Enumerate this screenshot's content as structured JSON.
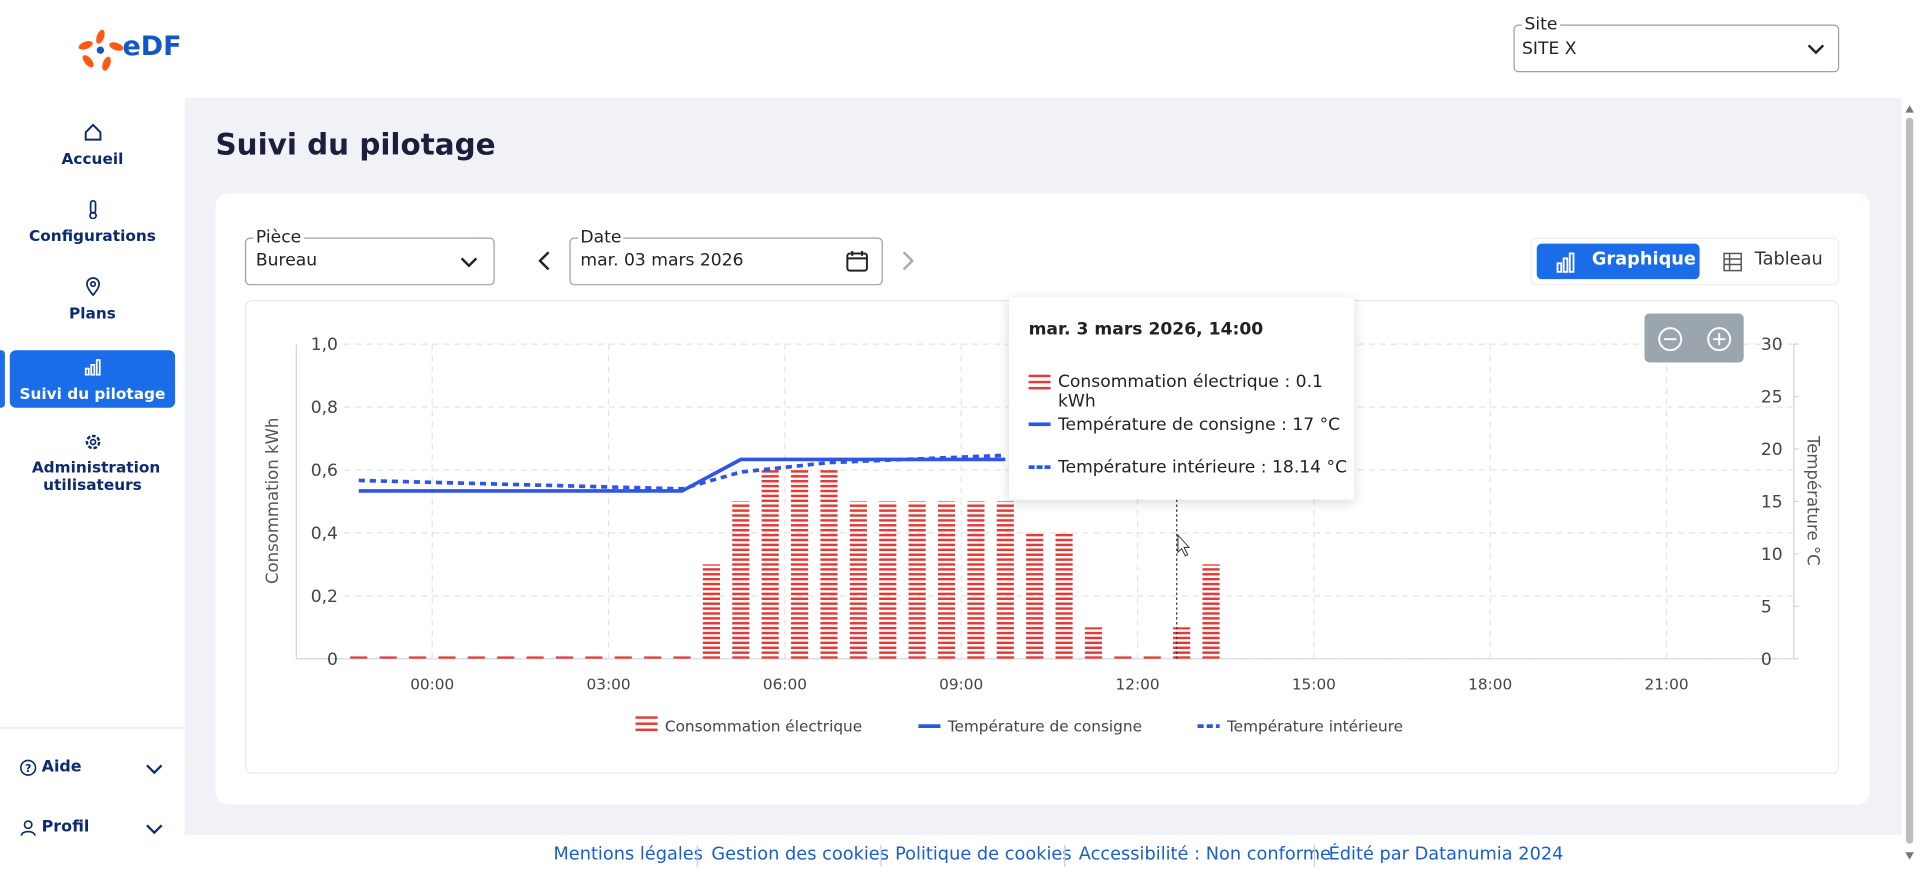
{
  "header": {
    "logo": "eDF",
    "site_label": "Site",
    "site_value": "SITE X"
  },
  "nav": {
    "items": [
      "Accueil",
      "Configurations",
      "Plans",
      "Suivi du pilotage",
      "Administration utilisateurs"
    ],
    "bottom": [
      "Aide",
      "Profil"
    ]
  },
  "page": {
    "title": "Suivi du pilotage",
    "room_label": "Pièce",
    "room_value": "Bureau",
    "date_label": "Date",
    "date_value": "mar. 03 mars 2026",
    "views": [
      "Graphique",
      "Tableau"
    ]
  },
  "tooltip": {
    "title": "mar. 3 mars 2026, 14:00",
    "lines": [
      "Consommation électrique : 0.1 kWh",
      "Température de consigne : 17 °C",
      "Température intérieure : 18.14 °C"
    ]
  },
  "chart_data": {
    "type": "bar",
    "ylabel": "Consommation kWh",
    "y2label": "Température °C",
    "xlim": [
      -1.5,
      23.17
    ],
    "xticks": [
      {
        "value": 0,
        "label": "00:00"
      },
      {
        "value": 3,
        "label": "03:00"
      },
      {
        "value": 6,
        "label": "06:00"
      },
      {
        "value": 9,
        "label": "09:00"
      },
      {
        "value": 12,
        "label": "12:00"
      },
      {
        "value": 15,
        "label": "15:00"
      },
      {
        "value": 18,
        "label": "18:00"
      },
      {
        "value": 21,
        "label": "21:00"
      }
    ],
    "ylim": [
      0,
      1
    ],
    "yticks": [
      0,
      {
        "value": 0.2,
        "label": "0,2"
      },
      {
        "value": 0.4,
        "label": "0,4"
      },
      {
        "value": 0.6,
        "label": "0,6"
      },
      {
        "value": 0.8,
        "label": "0,8"
      },
      {
        "value": 1,
        "label": "1,0"
      }
    ],
    "y2lim": [
      0,
      30
    ],
    "y2ticks": [
      0,
      5,
      10,
      15,
      20,
      25,
      30
    ],
    "grid": true,
    "series": [
      {
        "name": "Consommation électrique",
        "type": "bar",
        "color": "#e53935",
        "x": [
          -1.25,
          -0.75,
          -0.25,
          0.25,
          0.75,
          1.25,
          1.75,
          2.25,
          2.75,
          3.25,
          3.75,
          4.25,
          4.75,
          5.25,
          5.75,
          6.25,
          6.75,
          7.25,
          7.75,
          8.25,
          8.75,
          9.25,
          9.75,
          10.25,
          10.75,
          11.25,
          11.75,
          12.25,
          12.75,
          13.25
        ],
        "values": [
          0,
          0,
          0,
          0,
          0,
          0,
          0,
          0,
          0,
          0,
          0,
          0,
          0.3,
          0.5,
          0.6,
          0.6,
          0.6,
          0.5,
          0.5,
          0.5,
          0.5,
          0.5,
          0.5,
          0.4,
          0.4,
          0.1,
          0,
          0,
          0.1,
          0.3
        ]
      },
      {
        "name": "Température de consigne",
        "type": "line",
        "axis": "y2",
        "color": "#2f55e4",
        "x": [
          -1.25,
          4.25,
          5.25,
          9.75
        ],
        "values": [
          16,
          16,
          19,
          19
        ]
      },
      {
        "name": "Température intérieure",
        "type": "line",
        "axis": "y2",
        "color": "#2f55e4",
        "dashed": true,
        "x": [
          -1.25,
          4.25,
          5.25,
          6.75,
          9.75
        ],
        "values": [
          17,
          16.2,
          17.8,
          18.7,
          19.4
        ]
      }
    ]
  },
  "footer": {
    "links": [
      "Mentions légales",
      "Gestion des cookies",
      "Politique de cookies",
      "Accessibilité : Non conforme",
      "Édité par Datanumia 2024"
    ]
  }
}
